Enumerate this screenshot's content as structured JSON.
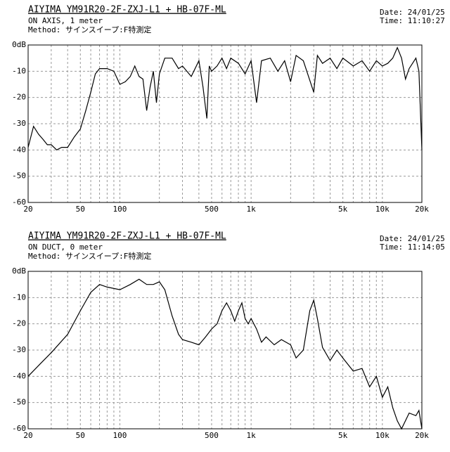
{
  "chart_data": [
    {
      "type": "line",
      "title": "AIYIMA YM91R20-2F-ZXJ-L1 + HB-07F-ML",
      "subtitle": "ON AXIS, 1 meter",
      "method": "Method: サインスイープ:F特測定",
      "date": "Date: 24/01/25",
      "time": "Time: 11:10:27",
      "xscale": "log",
      "grid": true,
      "xlim": [
        20,
        20000
      ],
      "ylim": [
        -60,
        0
      ],
      "xticks": [
        20,
        50,
        100,
        500,
        {
          "value": 1000,
          "label": "1k"
        },
        {
          "value": 5000,
          "label": "5k"
        },
        {
          "value": 10000,
          "label": "10k"
        },
        {
          "value": 20000,
          "label": "20k"
        }
      ],
      "xgrid": [
        30,
        40,
        60,
        70,
        80,
        90,
        200,
        300,
        400,
        600,
        700,
        800,
        900,
        2000,
        3000,
        4000,
        6000,
        7000,
        8000,
        9000
      ],
      "yticks": [
        {
          "value": 0,
          "label": "0dB"
        },
        -10,
        -20,
        -30,
        -40,
        -50,
        -60
      ],
      "series": [
        {
          "color": "#000000",
          "x": [
            20,
            22,
            24,
            26,
            28,
            30,
            33,
            36,
            40,
            45,
            50,
            55,
            60,
            65,
            70,
            80,
            90,
            100,
            110,
            120,
            130,
            140,
            150,
            160,
            170,
            180,
            190,
            200,
            220,
            250,
            280,
            300,
            350,
            400,
            430,
            460,
            480,
            500,
            550,
            600,
            650,
            700,
            800,
            900,
            1000,
            1100,
            1200,
            1400,
            1600,
            1800,
            2000,
            2200,
            2500,
            3000,
            3200,
            3500,
            4000,
            4500,
            5000,
            6000,
            7000,
            8000,
            9000,
            10000,
            11000,
            12000,
            13000,
            14000,
            15000,
            16000,
            18000,
            19000,
            20000
          ],
          "values": [
            -39,
            -31,
            -34,
            -36,
            -38,
            -38,
            -40,
            -39,
            -39,
            -35,
            -32,
            -25,
            -18,
            -11,
            -9,
            -9,
            -10,
            -15,
            -14,
            -12,
            -8,
            -12,
            -13,
            -25,
            -16,
            -10,
            -22,
            -11,
            -5,
            -5,
            -9,
            -8,
            -12,
            -6,
            -16,
            -28,
            -8,
            -10,
            -8,
            -5,
            -9,
            -5,
            -7,
            -11,
            -6,
            -22,
            -6,
            -5,
            -10,
            -6,
            -14,
            -4,
            -6,
            -18,
            -4,
            -7,
            -5,
            -9,
            -5,
            -8,
            -6,
            -10,
            -6,
            -8,
            -7,
            -5,
            -1,
            -5,
            -13,
            -9,
            -5,
            -10,
            -40
          ]
        }
      ]
    },
    {
      "type": "line",
      "title": "AIYIMA YM91R20-2F-ZXJ-L1 + HB-07F-ML",
      "subtitle": "ON DUCT, 0 meter",
      "method": "Method: サインスイープ:F特測定",
      "date": "Date: 24/01/25",
      "time": "Time: 11:14:05",
      "xscale": "log",
      "grid": true,
      "xlim": [
        20,
        20000
      ],
      "ylim": [
        -60,
        0
      ],
      "xticks": [
        20,
        50,
        100,
        500,
        {
          "value": 1000,
          "label": "1k"
        },
        {
          "value": 5000,
          "label": "5k"
        },
        {
          "value": 10000,
          "label": "10k"
        },
        {
          "value": 20000,
          "label": "20k"
        }
      ],
      "xgrid": [
        30,
        40,
        60,
        70,
        80,
        90,
        200,
        300,
        400,
        600,
        700,
        800,
        900,
        2000,
        3000,
        4000,
        6000,
        7000,
        8000,
        9000
      ],
      "yticks": [
        {
          "value": 0,
          "label": "0dB"
        },
        -10,
        -20,
        -30,
        -40,
        -50,
        -60
      ],
      "series": [
        {
          "color": "#000000",
          "x": [
            20,
            25,
            30,
            40,
            50,
            60,
            70,
            80,
            100,
            120,
            140,
            160,
            180,
            200,
            220,
            250,
            280,
            300,
            350,
            400,
            450,
            500,
            550,
            600,
            650,
            700,
            750,
            800,
            850,
            900,
            950,
            1000,
            1100,
            1200,
            1300,
            1500,
            1700,
            2000,
            2200,
            2500,
            2800,
            3000,
            3200,
            3500,
            4000,
            4500,
            5000,
            6000,
            7000,
            8000,
            9000,
            10000,
            11000,
            12000,
            13000,
            14000,
            16000,
            18000,
            19000,
            20000
          ],
          "values": [
            -40,
            -35,
            -31,
            -24,
            -15,
            -8,
            -5,
            -6,
            -7,
            -5,
            -3,
            -5,
            -5,
            -4,
            -7,
            -17,
            -24,
            -26,
            -27,
            -28,
            -25,
            -22,
            -20,
            -15,
            -12,
            -15,
            -19,
            -15,
            -12,
            -18,
            -20,
            -18,
            -22,
            -27,
            -25,
            -28,
            -26,
            -28,
            -33,
            -30,
            -15,
            -11,
            -18,
            -29,
            -34,
            -30,
            -33,
            -38,
            -37,
            -44,
            -40,
            -48,
            -44,
            -52,
            -57,
            -60,
            -54,
            -55,
            -53,
            -60
          ]
        }
      ]
    }
  ]
}
